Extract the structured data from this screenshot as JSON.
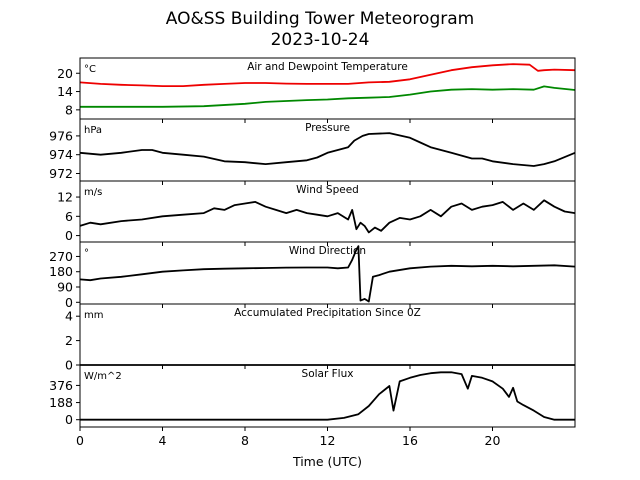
{
  "figure": {
    "title_line1": "AO&SS Building Tower Meteorogram",
    "title_line2": "2023-10-24",
    "xlabel": "Time (UTC)",
    "xticks": [
      0,
      4,
      8,
      12,
      16,
      20
    ],
    "xlim": [
      0,
      24
    ]
  },
  "colors": {
    "temperature": "#ee0000",
    "dewpoint": "#008800",
    "black": "#000000"
  },
  "chart_data": [
    {
      "type": "line",
      "title": "Air and Dewpoint Temperature",
      "unit": "°C",
      "ylim": [
        5,
        25
      ],
      "yticks": [
        8,
        14,
        20
      ],
      "series": [
        {
          "color_key": "temperature",
          "x": [
            0,
            1,
            2,
            3,
            4,
            5,
            6,
            7,
            8,
            9,
            10,
            11,
            12,
            13,
            14,
            15,
            16,
            17,
            18,
            19,
            20,
            21,
            21.8,
            22.2,
            22.5,
            23,
            24
          ],
          "y": [
            17,
            16.5,
            16.2,
            16,
            15.8,
            15.8,
            16.2,
            16.5,
            16.8,
            16.8,
            16.6,
            16.5,
            16.5,
            16.5,
            17,
            17.2,
            18,
            19.5,
            21,
            22,
            22.6,
            23,
            22.8,
            20.8,
            21,
            21.2,
            21
          ]
        },
        {
          "color_key": "dewpoint",
          "x": [
            0,
            2,
            4,
            6,
            8,
            9,
            10,
            11,
            12,
            13,
            14,
            15,
            16,
            17,
            18,
            19,
            20,
            21,
            22,
            22.5,
            23,
            24
          ],
          "y": [
            9,
            9,
            9,
            9.2,
            10,
            10.6,
            10.9,
            11.2,
            11.4,
            11.8,
            12,
            12.2,
            13,
            14,
            14.6,
            14.8,
            14.6,
            14.8,
            14.6,
            15.7,
            15.2,
            14.5
          ]
        }
      ]
    },
    {
      "type": "line",
      "title": "Pressure",
      "unit": "hPa",
      "ylim": [
        971.2,
        977.8
      ],
      "yticks": [
        972,
        974,
        976
      ],
      "series": [
        {
          "color_key": "black",
          "x": [
            0,
            1,
            2,
            3,
            3.5,
            4,
            5,
            6,
            7,
            8,
            8.5,
            9,
            10,
            11,
            11.5,
            12,
            12.5,
            13,
            13.3,
            13.7,
            14,
            15,
            16,
            16.5,
            17,
            18,
            19,
            19.5,
            20,
            21,
            22,
            22.5,
            23,
            24
          ],
          "y": [
            974.2,
            974,
            974.2,
            974.5,
            974.5,
            974.2,
            974,
            973.8,
            973.3,
            973.2,
            973.1,
            973,
            973.2,
            973.4,
            973.7,
            974.2,
            974.5,
            974.8,
            975.5,
            976,
            976.2,
            976.3,
            975.8,
            975.3,
            974.8,
            974.2,
            973.6,
            973.6,
            973.3,
            973,
            972.8,
            973,
            973.3,
            974.2
          ]
        }
      ]
    },
    {
      "type": "line",
      "title": "Wind Speed",
      "unit": "m/s",
      "ylim": [
        -2,
        17
      ],
      "yticks": [
        0,
        6,
        12
      ],
      "series": [
        {
          "color_key": "black",
          "x": [
            0,
            0.5,
            1,
            2,
            3,
            4,
            5,
            6,
            6.5,
            7,
            7.5,
            8,
            8.5,
            9,
            9.5,
            10,
            10.5,
            11,
            11.5,
            12,
            12.5,
            13,
            13.2,
            13.4,
            13.6,
            13.8,
            14,
            14.3,
            14.6,
            15,
            15.5,
            16,
            16.5,
            17,
            17.5,
            18,
            18.5,
            19,
            19.5,
            20,
            20.5,
            21,
            21.5,
            22,
            22.5,
            23,
            23.5,
            24
          ],
          "y": [
            3,
            4,
            3.5,
            4.5,
            5,
            6,
            6.5,
            7,
            8.5,
            8,
            9.5,
            10,
            10.5,
            9,
            8,
            7,
            8,
            7,
            6.5,
            6,
            7,
            5,
            8,
            2,
            4,
            3,
            1,
            2.5,
            1.5,
            4,
            5.5,
            5,
            6,
            8,
            6,
            9,
            10,
            8,
            9,
            9.5,
            10.5,
            8,
            10,
            8,
            11,
            9,
            7.5,
            7
          ]
        }
      ]
    },
    {
      "type": "line",
      "title": "Wind Direction",
      "unit": "°",
      "ylim": [
        -10,
        355
      ],
      "yticks": [
        0,
        90,
        180,
        270
      ],
      "series": [
        {
          "color_key": "black",
          "x": [
            0,
            0.5,
            1,
            2,
            3,
            4,
            5,
            6,
            7,
            8,
            9,
            10,
            11,
            12,
            12.5,
            13,
            13.2,
            13.4,
            13.5,
            13.6,
            13.8,
            14,
            14.2,
            14.5,
            15,
            16,
            17,
            18,
            19,
            20,
            21,
            22,
            23,
            24
          ],
          "y": [
            135,
            130,
            140,
            150,
            165,
            180,
            188,
            195,
            198,
            200,
            202,
            204,
            205,
            205,
            200,
            205,
            250,
            310,
            330,
            10,
            20,
            5,
            150,
            160,
            180,
            200,
            210,
            215,
            212,
            215,
            212,
            215,
            218,
            210
          ]
        }
      ]
    },
    {
      "type": "line",
      "title": "Accumulated Precipitation Since 0Z",
      "unit": "mm",
      "ylim": [
        0,
        5
      ],
      "yticks": [
        0,
        2,
        4
      ],
      "series": [
        {
          "color_key": "black",
          "x": [
            0,
            24
          ],
          "y": [
            0,
            0
          ]
        }
      ]
    },
    {
      "type": "line",
      "title": "Solar Flux",
      "unit": "W/m^2",
      "ylim": [
        -80,
        600
      ],
      "yticks": [
        0,
        188,
        376
      ],
      "series": [
        {
          "color_key": "black",
          "x": [
            0,
            12,
            12.8,
            13.5,
            14,
            14.5,
            15,
            15.2,
            15.5,
            16,
            16.5,
            17,
            17.5,
            18,
            18.5,
            18.8,
            19,
            19.5,
            20,
            20.5,
            20.8,
            21,
            21.2,
            21.5,
            22,
            22.5,
            23,
            24
          ],
          "y": [
            0,
            0,
            20,
            60,
            150,
            280,
            370,
            100,
            420,
            460,
            490,
            510,
            520,
            520,
            500,
            340,
            480,
            460,
            420,
            340,
            250,
            350,
            200,
            160,
            100,
            30,
            0,
            0
          ]
        }
      ]
    }
  ]
}
